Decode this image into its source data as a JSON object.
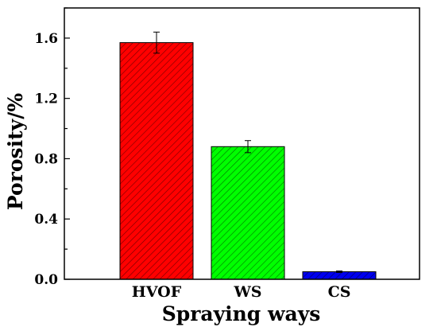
{
  "chart_data": {
    "type": "bar",
    "title": "",
    "xlabel": "Spraying ways",
    "ylabel": "Porosity/%",
    "categories": [
      "HVOF",
      "WS",
      "CS"
    ],
    "values": [
      1.57,
      0.88,
      0.05
    ],
    "errors": [
      0.07,
      0.04,
      0.005
    ],
    "colors": [
      "#ff0000",
      "#00ff00",
      "#0000ee"
    ],
    "ylim": [
      0,
      1.8
    ],
    "yticks": [
      0.0,
      0.4,
      0.8,
      1.2,
      1.6
    ],
    "ytick_labels": [
      "0.0",
      "0.4",
      "0.8",
      "1.2",
      "1.6"
    ],
    "bar_pattern": "diagonal-hatch",
    "grid": false,
    "legend": false
  }
}
